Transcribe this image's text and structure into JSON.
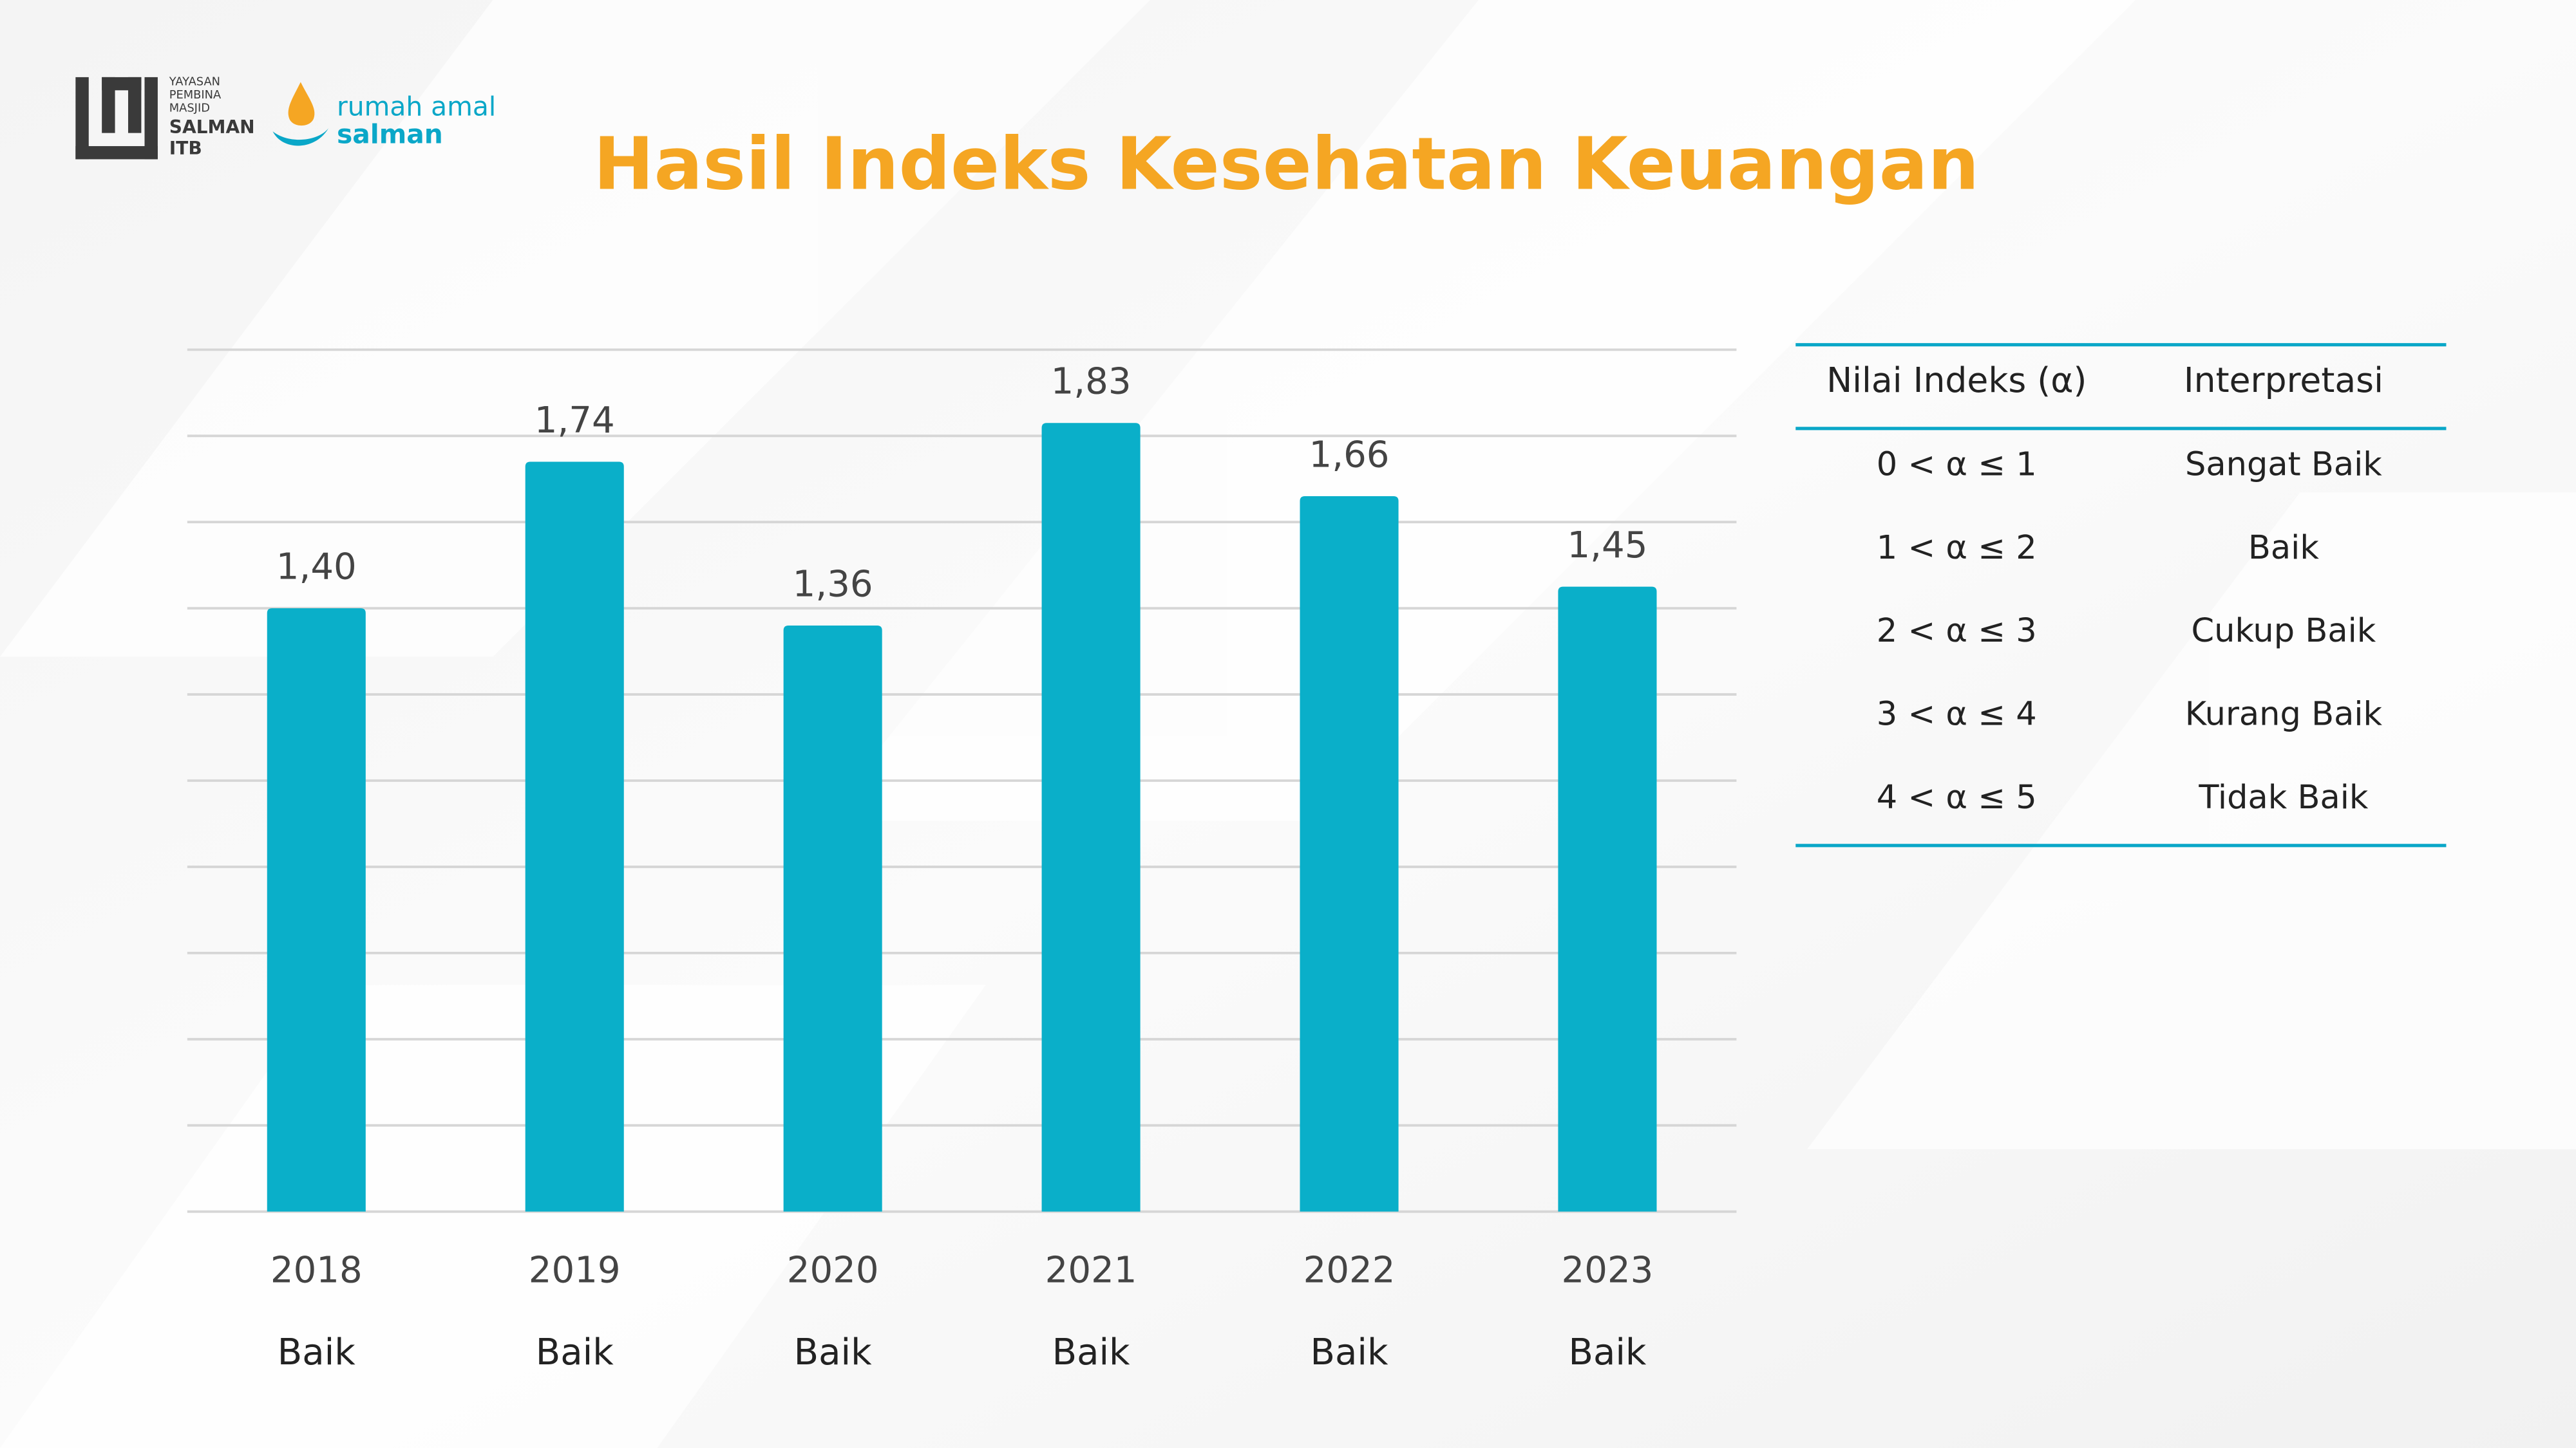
{
  "chart_data": {
    "type": "bar",
    "title": "Hasil Indeks Kesehatan Keuangan",
    "categories": [
      "2018",
      "2019",
      "2020",
      "2021",
      "2022",
      "2023"
    ],
    "values": [
      1.4,
      1.74,
      1.36,
      1.83,
      1.66,
      1.45
    ],
    "value_labels": [
      "1,40",
      "1,74",
      "1,36",
      "1,83",
      "1,66",
      "1,45"
    ],
    "interpretations": [
      "Baik",
      "Baik",
      "Baik",
      "Baik",
      "Baik",
      "Baik"
    ],
    "color": "#0aafc9",
    "ylim": [
      0,
      2
    ],
    "yticks": [
      0,
      0.2,
      0.4,
      0.6,
      0.8,
      1,
      1.2,
      1.4,
      1.6,
      1.8,
      2
    ],
    "grid": true
  },
  "table": {
    "header": [
      "Nilai Indeks (α)",
      "Interpretasi"
    ],
    "rows": [
      [
        "0 < α ≤ 1",
        "Sangat Baik"
      ],
      [
        "1 < α ≤ 2",
        "Baik"
      ],
      [
        "2 < α ≤ 3",
        "Cukup Baik"
      ],
      [
        "3 < α ≤ 4",
        "Kurang Baik"
      ],
      [
        "4 < α ≤ 5",
        "Tidak Baik"
      ]
    ]
  },
  "logo": {
    "org": [
      "YAYASAN",
      "PEMBINA",
      "MASJID",
      "SALMAN",
      "ITB"
    ],
    "brand": [
      "rumah amal",
      "salman"
    ]
  }
}
